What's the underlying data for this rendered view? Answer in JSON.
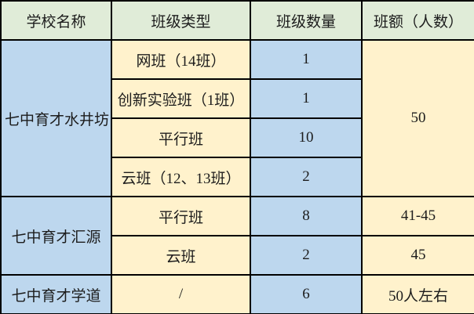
{
  "table": {
    "header": [
      "学校名称",
      "班级类型",
      "班级数量",
      "班额（人数）"
    ],
    "rows": [
      {
        "school": "七中育才水井坊",
        "school_rowspan": 4,
        "type": "网班（14班）",
        "quantity": "1",
        "size": "50",
        "size_rowspan": 4
      },
      {
        "type": "创新实验班（1班）",
        "quantity": "1"
      },
      {
        "type": "平行班",
        "quantity": "10"
      },
      {
        "type": "云班（12、13班）",
        "quantity": "2"
      },
      {
        "school": "七中育才汇源",
        "school_rowspan": 2,
        "type": "平行班",
        "quantity": "8",
        "size": "41-45"
      },
      {
        "type": "云班",
        "quantity": "2",
        "size": "45"
      },
      {
        "school": "七中育才学道",
        "school_rowspan": 1,
        "type": "/",
        "quantity": "6",
        "size": "50人左右"
      }
    ],
    "colors": {
      "header_bg": "#e0ecd8",
      "school_column_bg": "#bdd7ee",
      "type_column_bg": "#fff2cc",
      "quantity_column_bg": "#bdd7ee",
      "size_column_bg": "#fff2cc",
      "border": "#000000",
      "text": "#1c1c1c"
    }
  }
}
